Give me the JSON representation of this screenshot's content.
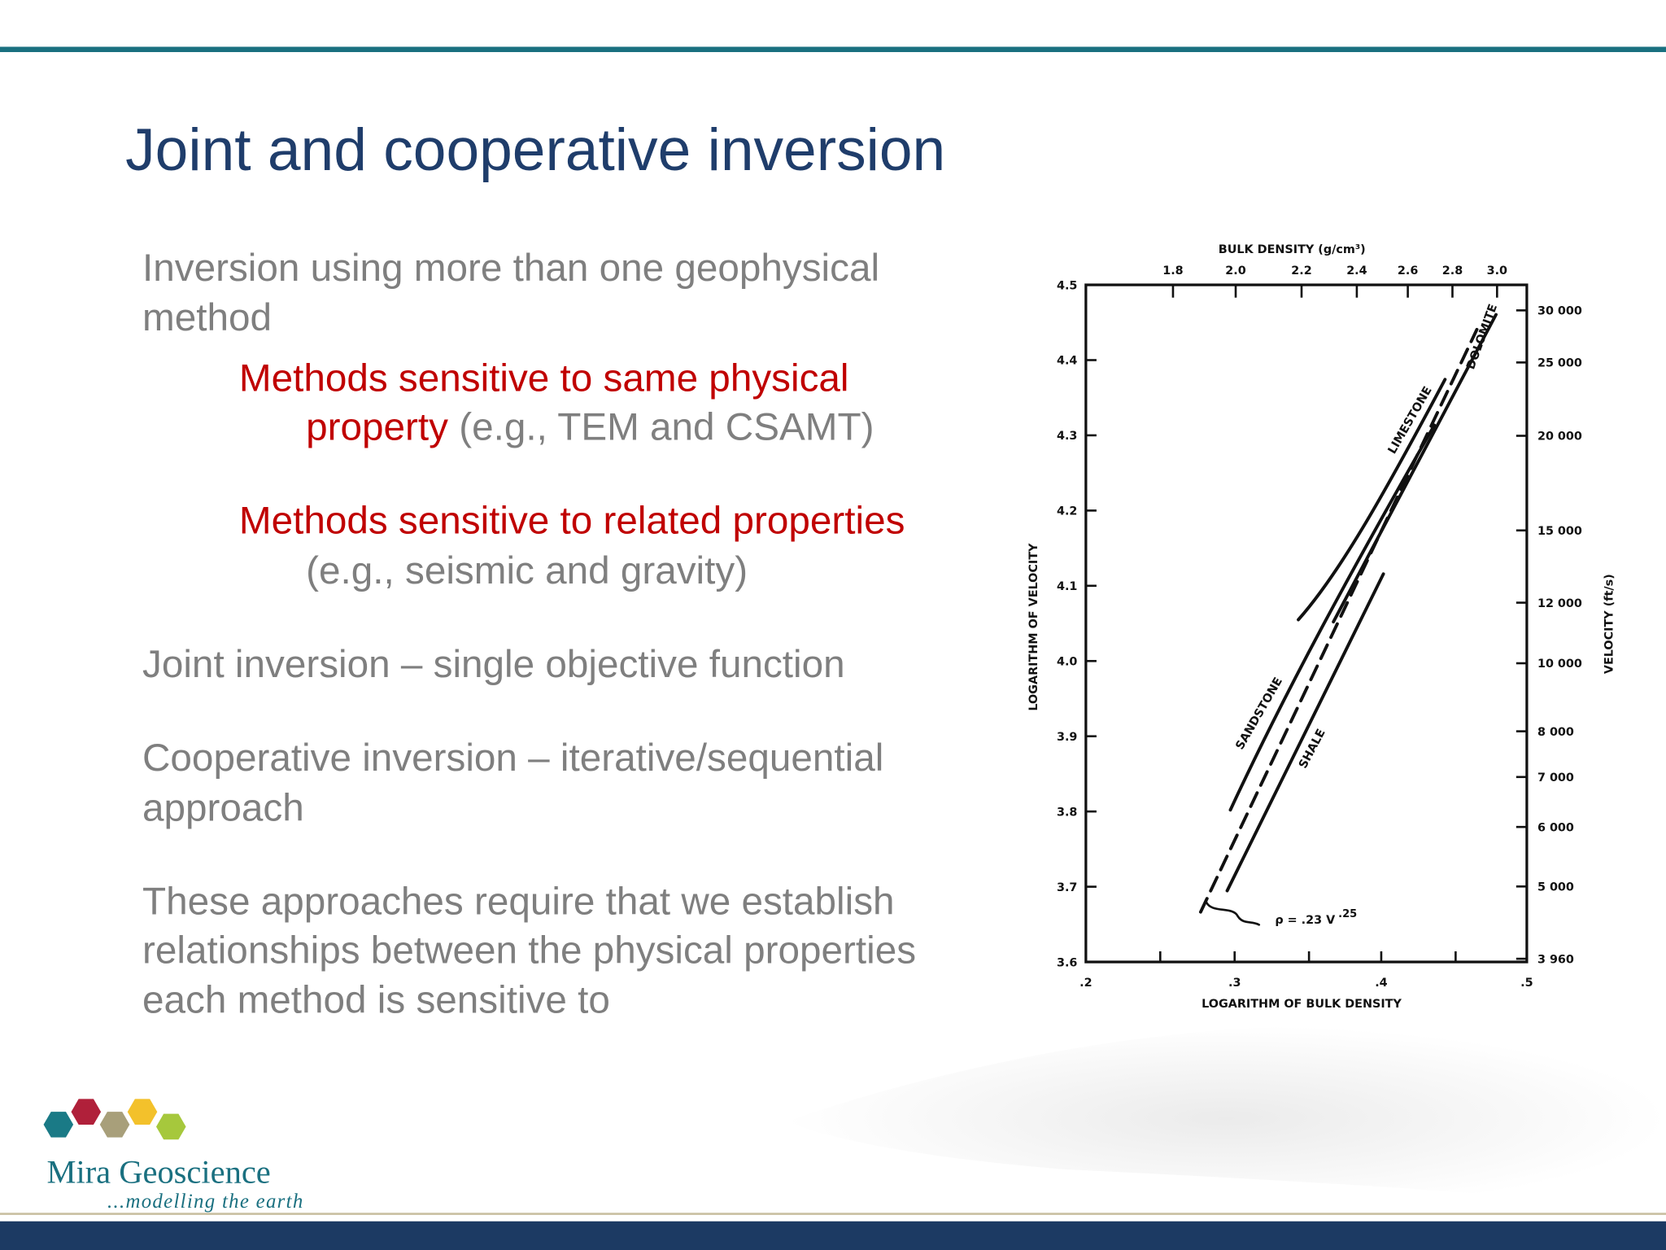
{
  "header": {
    "title": "Joint and cooperative inversion"
  },
  "body": {
    "bullet_0": [
      "Inversion using more than one geophysical",
      "method"
    ],
    "sub_0": {
      "red": [
        "Methods sensitive to same physical",
        "property"
      ],
      "grey": " (e.g., TEM and CSAMT)"
    },
    "sub_1": {
      "red": "Methods sensitive to related properties",
      "grey": "(e.g., seismic and gravity)"
    },
    "bullet_1": [
      "Joint inversion – single objective function"
    ],
    "bullet_2": [
      "Cooperative inversion – iterative/sequential",
      "approach"
    ],
    "bullet_3": [
      "These approaches require that we establish",
      "relationships between the physical properties",
      "each method is sensitive to"
    ]
  },
  "figure": {
    "top_axis_label": "BULK DENSITY (g/cm³)",
    "top_ticks": [
      "1.8",
      "2.0",
      "2.2",
      "2.4",
      "2.6",
      "2.8",
      "3.0"
    ],
    "left_axis_label": "LOGARITHM OF VELOCITY",
    "left_ticks": [
      "4.5",
      "4.4",
      "4.3",
      "4.2",
      "4.1",
      "4.0",
      "3.9",
      "3.8",
      "3.7",
      "3.6"
    ],
    "right_axis_label": "VELOCITY (ft/s)",
    "right_ticks": [
      "30 000",
      "25 000",
      "20 000",
      "15 000",
      "12 000",
      "10 000",
      "8 000",
      "7 000",
      "6 000",
      "5 000",
      "3 960"
    ],
    "bottom_axis_label": "LOGARITHM OF BULK DENSITY",
    "bottom_ticks": [
      ".2",
      ".3",
      ".4",
      ".5"
    ],
    "curve_labels": [
      "LIMESTONE",
      "DOLOMITE",
      "SANDSTONE",
      "SHALE"
    ],
    "formula": {
      "base": "ρ = .23 V",
      "exponent": ".25"
    }
  },
  "logo": {
    "name": "Mira Geoscience",
    "tagline": "...modelling the earth"
  }
}
